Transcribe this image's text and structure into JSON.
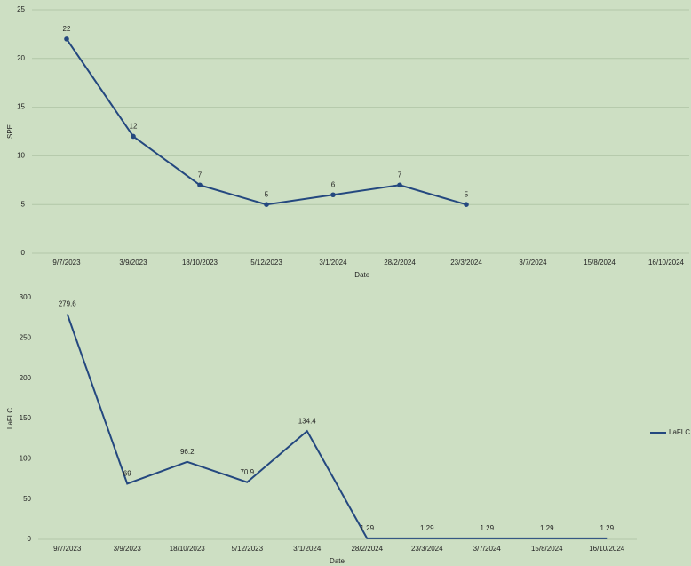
{
  "chart_data": [
    {
      "type": "line",
      "x_label": "Date",
      "y_label": "SPE",
      "categories": [
        "9/7/2023",
        "3/9/2023",
        "18/10/2023",
        "5/12/2023",
        "3/1/2024",
        "28/2/2024",
        "23/3/2024",
        "3/7/2024",
        "15/8/2024",
        "16/10/2024"
      ],
      "values": [
        22,
        12,
        7,
        5,
        6,
        7,
        5,
        null,
        null,
        null
      ],
      "color": "#24487f",
      "markers": true,
      "ylim": [
        0,
        25
      ],
      "yticks": [
        0,
        5,
        10,
        15,
        20,
        25
      ],
      "grid": true
    },
    {
      "type": "line",
      "x_label": "Date",
      "y_label": "LaFLC",
      "categories": [
        "9/7/2023",
        "3/9/2023",
        "18/10/2023",
        "5/12/2023",
        "3/1/2024",
        "28/2/2024",
        "23/3/2024",
        "3/7/2024",
        "15/8/2024",
        "16/10/2024"
      ],
      "series": [
        {
          "name": "LaFLC",
          "color": "#24487f",
          "values": [
            279.6,
            69,
            96.2,
            70.9,
            134.4,
            1.29,
            1.29,
            1.29,
            1.29,
            1.29
          ]
        }
      ],
      "markers": false,
      "legend": "right",
      "ylim": [
        0,
        300
      ],
      "yticks": [
        0,
        50,
        100,
        150,
        200,
        250,
        300
      ],
      "grid": false
    }
  ]
}
